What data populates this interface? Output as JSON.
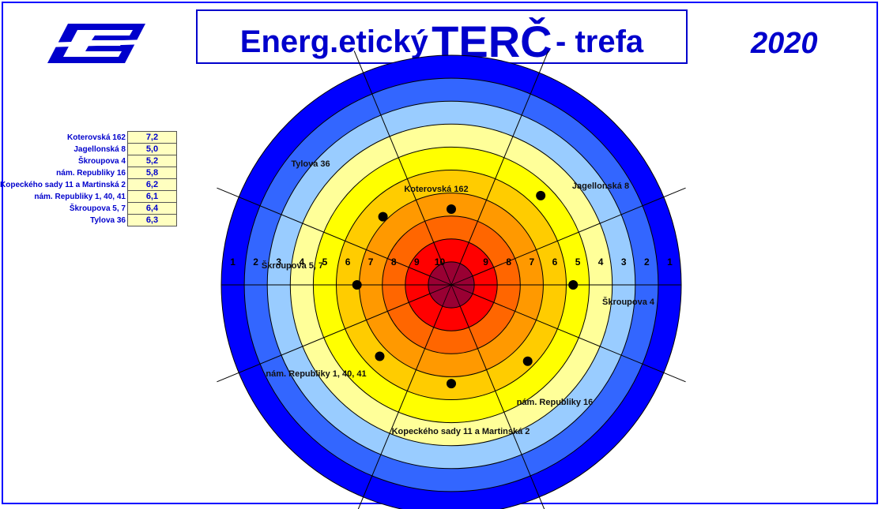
{
  "title": {
    "part1": "Energ.etický",
    "part2": "TERČ",
    "part3": "- trefa"
  },
  "year": "2020",
  "colors": {
    "ring_colors": [
      "#0000ff",
      "#3366ff",
      "#99ccff",
      "#ffff99",
      "#ffff00",
      "#ffcc00",
      "#ff9900",
      "#ff6600",
      "#ff0000",
      "#990033"
    ],
    "text_blue": "#0000cc"
  },
  "chart_data": {
    "type": "radar-target",
    "scale_min": 1,
    "scale_max": 10,
    "scale_labels_left": [
      "1",
      "2",
      "3",
      "4",
      "5",
      "6",
      "7",
      "8",
      "9",
      "10"
    ],
    "scale_labels_right": [
      "9",
      "8",
      "7",
      "6",
      "5",
      "4",
      "3",
      "2",
      "1"
    ],
    "series": [
      {
        "name": "Koterovská 162",
        "value": 7.2,
        "value_label": "7,2"
      },
      {
        "name": "Jagellonská 8",
        "value": 5.0,
        "value_label": "5,0"
      },
      {
        "name": "Škroupova 4",
        "value": 5.2,
        "value_label": "5,2"
      },
      {
        "name": "nám. Republiky 16",
        "value": 5.8,
        "value_label": "5,8"
      },
      {
        "name": "Kopeckého sady 11 a Martinská 2",
        "value": 6.2,
        "value_label": "6,2"
      },
      {
        "name": "nám. Republiky 1, 40, 41",
        "value": 6.1,
        "value_label": "6,1"
      },
      {
        "name": "Škroupova 5, 7",
        "value": 6.4,
        "value_label": "6,4"
      },
      {
        "name": "Tylova 36",
        "value": 6.3,
        "value_label": "6,3"
      }
    ]
  }
}
